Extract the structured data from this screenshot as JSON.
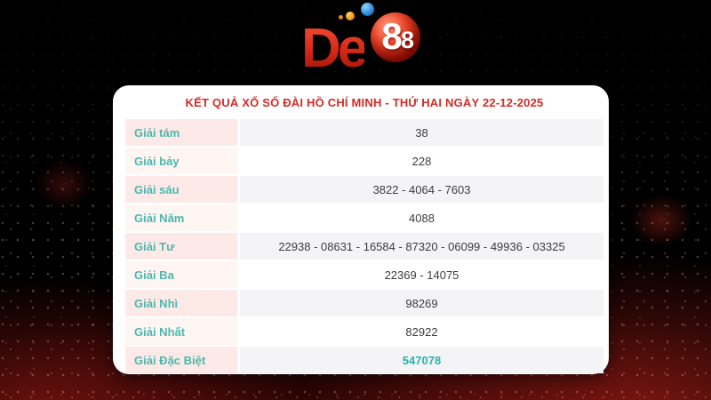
{
  "logo": {
    "brand": "De88",
    "part_de": "De",
    "part_eight_large": "8",
    "part_eight_small": "8",
    "dots": [
      "small-orange-ball",
      "orange-ball",
      "blue-ball"
    ]
  },
  "result_card": {
    "title": "KẾT QUẢ XỔ SỐ ĐÀI HỒ CHÍ MINH - THỨ HAI NGÀY 22-12-2025",
    "rows": [
      {
        "label": "Giải tám",
        "value": "38"
      },
      {
        "label": "Giải bảy",
        "value": "228"
      },
      {
        "label": "Giải sáu",
        "value": "3822 - 4064 - 7603"
      },
      {
        "label": "Giải Năm",
        "value": "4088"
      },
      {
        "label": "Giải Tư",
        "value": "22938 - 08631 - 16584 - 87320 - 06099 - 49936 - 03325"
      },
      {
        "label": "Giải Ba",
        "value": "22369 - 14075"
      },
      {
        "label": "Giải Nhì",
        "value": "98269"
      },
      {
        "label": "Giải Nhất",
        "value": "82922"
      },
      {
        "label": "Giải Đặc Biệt",
        "value": "547078"
      }
    ]
  },
  "colors": {
    "accent_red": "#d52b27",
    "label_teal": "#4ab8ad",
    "special_teal": "#2bb3aa",
    "row_pink": "#fdeae8",
    "row_grey": "#f4f4f6",
    "ball_red": "#c21807",
    "background": "#000000"
  }
}
